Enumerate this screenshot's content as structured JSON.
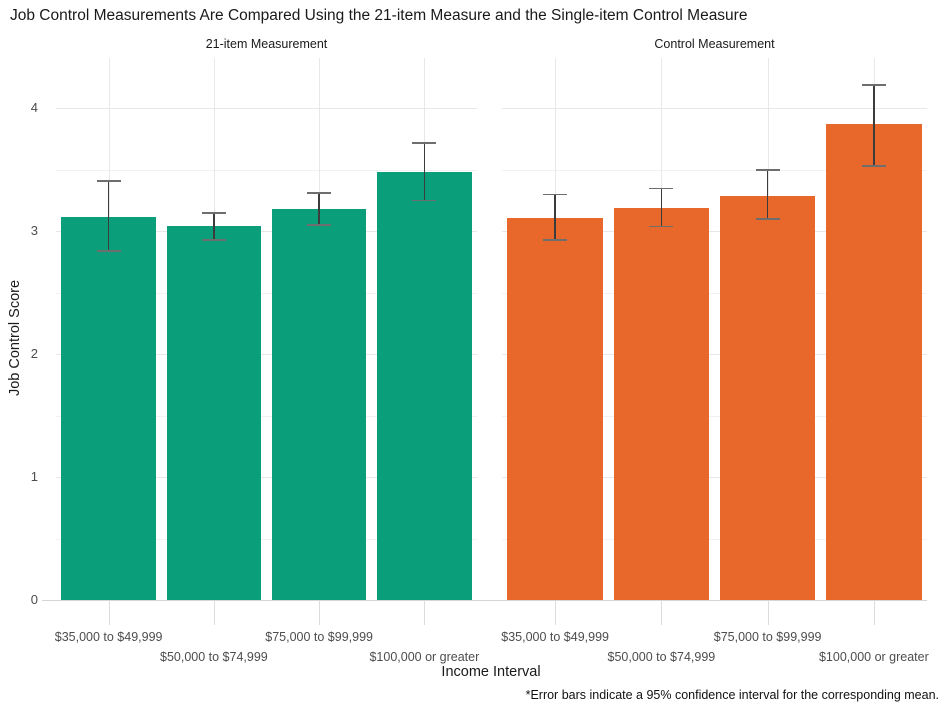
{
  "chart_data": {
    "type": "bar",
    "title": "Job Control Measurements Are Compared Using the 21-item Measure and the Single-item Control Measure",
    "xlabel": "Income Interval",
    "ylabel": "Job Control Score",
    "footnote": "*Error bars indicate a 95% confidence interval for the corresponding mean.",
    "ylim": [
      0,
      4.41
    ],
    "yticks": [
      0,
      1,
      2,
      3,
      4
    ],
    "minor_gridlines": [
      0.5,
      1.5,
      2.5,
      3.5
    ],
    "grid": "horizontal major+minor and vertical major, light gray on white",
    "legend": "none",
    "error_bars": "95% confidence interval",
    "categories": [
      "$35,000 to $49,999",
      "$50,000 to $74,999",
      "$75,000 to $99,999",
      "$100,000 or greater"
    ],
    "facets": [
      {
        "label": "21-item Measurement",
        "color": "#0b9e7b",
        "values": [
          3.12,
          3.04,
          3.18,
          3.48
        ],
        "ci_low": [
          2.84,
          2.93,
          3.05,
          3.25
        ],
        "ci_high": [
          3.41,
          3.15,
          3.31,
          3.72
        ]
      },
      {
        "label": "Control Measurement",
        "color": "#e8682c",
        "values": [
          3.11,
          3.19,
          3.29,
          3.87
        ],
        "ci_low": [
          2.93,
          3.04,
          3.1,
          3.53
        ],
        "ci_high": [
          3.3,
          3.35,
          3.5,
          4.19
        ]
      }
    ]
  }
}
